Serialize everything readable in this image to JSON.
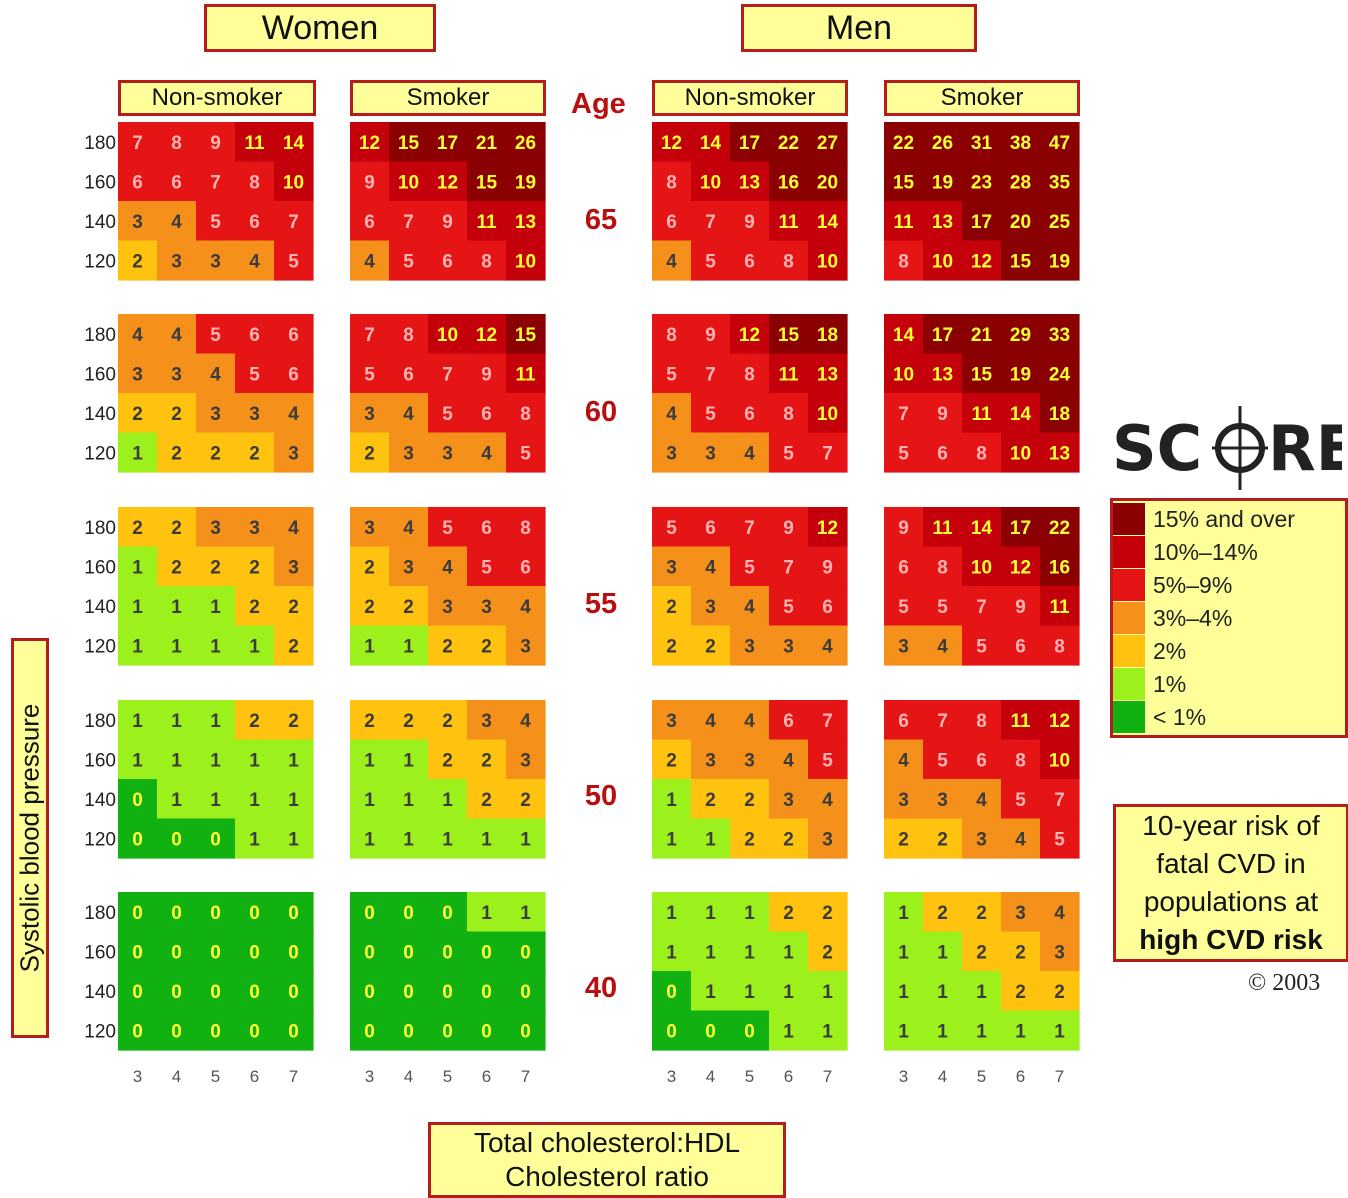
{
  "chart_data": {
    "type": "heatmap",
    "sex_headers": [
      "Women",
      "Men"
    ],
    "smoking_headers": [
      "Non-smoker",
      "Smoker"
    ],
    "age_header": "Age",
    "ages": [
      "65",
      "60",
      "55",
      "50",
      "40"
    ],
    "sbp_levels": [
      "180",
      "160",
      "140",
      "120"
    ],
    "chol_ratios": [
      "3",
      "4",
      "5",
      "6",
      "7"
    ],
    "ylabel": "Systolic blood pressure",
    "xlabel": [
      "Total cholesterol:HDL",
      "Cholesterol ratio"
    ],
    "description": [
      "10-year risk of",
      "fatal CVD in",
      "populations at",
      "high CVD risk"
    ],
    "copyright": "© 2003",
    "logo": "SCORE",
    "legend": [
      {
        "label": "15% and over",
        "color": "#8b0000"
      },
      {
        "label": "10%–14%",
        "color": "#c4000b"
      },
      {
        "label": "5%–9%",
        "color": "#e61515"
      },
      {
        "label": "3%–4%",
        "color": "#f5901a"
      },
      {
        "label": "2%",
        "color": "#ffc20e"
      },
      {
        "label": "1%",
        "color": "#9cf01c"
      },
      {
        "label": "< 1%",
        "color": "#12b112"
      }
    ],
    "panels": [
      {
        "sex": "Women",
        "smoker": "Non-smoker",
        "values": [
          [
            [
              7,
              8,
              9,
              11,
              14
            ],
            [
              6,
              6,
              7,
              8,
              10
            ],
            [
              3,
              4,
              5,
              6,
              7
            ],
            [
              2,
              3,
              3,
              4,
              5
            ]
          ],
          [
            [
              4,
              4,
              5,
              6,
              6
            ],
            [
              3,
              3,
              4,
              5,
              6
            ],
            [
              2,
              2,
              3,
              3,
              4
            ],
            [
              1,
              2,
              2,
              2,
              3
            ]
          ],
          [
            [
              2,
              2,
              3,
              3,
              4
            ],
            [
              1,
              2,
              2,
              2,
              3
            ],
            [
              1,
              1,
              1,
              2,
              2
            ],
            [
              1,
              1,
              1,
              1,
              2
            ]
          ],
          [
            [
              1,
              1,
              1,
              2,
              2
            ],
            [
              1,
              1,
              1,
              1,
              1
            ],
            [
              0,
              1,
              1,
              1,
              1
            ],
            [
              0,
              0,
              0,
              1,
              1
            ]
          ],
          [
            [
              0,
              0,
              0,
              0,
              0
            ],
            [
              0,
              0,
              0,
              0,
              0
            ],
            [
              0,
              0,
              0,
              0,
              0
            ],
            [
              0,
              0,
              0,
              0,
              0
            ]
          ]
        ]
      },
      {
        "sex": "Women",
        "smoker": "Smoker",
        "values": [
          [
            [
              12,
              15,
              17,
              21,
              26
            ],
            [
              9,
              10,
              12,
              15,
              19
            ],
            [
              6,
              7,
              9,
              11,
              13
            ],
            [
              4,
              5,
              6,
              8,
              10
            ]
          ],
          [
            [
              7,
              8,
              10,
              12,
              15
            ],
            [
              5,
              6,
              7,
              9,
              11
            ],
            [
              3,
              4,
              5,
              6,
              8
            ],
            [
              2,
              3,
              3,
              4,
              5
            ]
          ],
          [
            [
              3,
              4,
              5,
              6,
              8
            ],
            [
              2,
              3,
              4,
              5,
              6
            ],
            [
              2,
              2,
              3,
              3,
              4
            ],
            [
              1,
              1,
              2,
              2,
              3
            ]
          ],
          [
            [
              2,
              2,
              2,
              3,
              4
            ],
            [
              1,
              1,
              2,
              2,
              3
            ],
            [
              1,
              1,
              1,
              2,
              2
            ],
            [
              1,
              1,
              1,
              1,
              1
            ]
          ],
          [
            [
              0,
              0,
              0,
              1,
              1
            ],
            [
              0,
              0,
              0,
              0,
              0
            ],
            [
              0,
              0,
              0,
              0,
              0
            ],
            [
              0,
              0,
              0,
              0,
              0
            ]
          ]
        ]
      },
      {
        "sex": "Men",
        "smoker": "Non-smoker",
        "values": [
          [
            [
              12,
              14,
              17,
              22,
              27
            ],
            [
              8,
              10,
              13,
              16,
              20
            ],
            [
              6,
              7,
              9,
              11,
              14
            ],
            [
              4,
              5,
              6,
              8,
              10
            ]
          ],
          [
            [
              8,
              9,
              12,
              15,
              18
            ],
            [
              5,
              7,
              8,
              11,
              13
            ],
            [
              4,
              5,
              6,
              8,
              10
            ],
            [
              3,
              3,
              4,
              5,
              7
            ]
          ],
          [
            [
              5,
              6,
              7,
              9,
              12
            ],
            [
              3,
              4,
              5,
              7,
              9
            ],
            [
              2,
              3,
              4,
              5,
              6
            ],
            [
              2,
              2,
              3,
              3,
              4
            ]
          ],
          [
            [
              3,
              4,
              4,
              6,
              7
            ],
            [
              2,
              3,
              3,
              4,
              5
            ],
            [
              1,
              2,
              2,
              3,
              4
            ],
            [
              1,
              1,
              2,
              2,
              3
            ]
          ],
          [
            [
              1,
              1,
              1,
              2,
              2
            ],
            [
              1,
              1,
              1,
              1,
              2
            ],
            [
              0,
              1,
              1,
              1,
              1
            ],
            [
              0,
              0,
              0,
              1,
              1
            ]
          ]
        ]
      },
      {
        "sex": "Men",
        "smoker": "Smoker",
        "values": [
          [
            [
              22,
              26,
              31,
              38,
              47
            ],
            [
              15,
              19,
              23,
              28,
              35
            ],
            [
              11,
              13,
              17,
              20,
              25
            ],
            [
              8,
              10,
              12,
              15,
              19
            ]
          ],
          [
            [
              14,
              17,
              21,
              29,
              33
            ],
            [
              10,
              13,
              15,
              19,
              24
            ],
            [
              7,
              9,
              11,
              14,
              18
            ],
            [
              5,
              6,
              8,
              10,
              13
            ]
          ],
          [
            [
              9,
              11,
              14,
              17,
              22
            ],
            [
              6,
              8,
              10,
              12,
              16
            ],
            [
              5,
              5,
              7,
              9,
              11
            ],
            [
              3,
              4,
              5,
              6,
              8
            ]
          ],
          [
            [
              6,
              7,
              8,
              11,
              12
            ],
            [
              4,
              5,
              6,
              8,
              10
            ],
            [
              3,
              3,
              4,
              5,
              7
            ],
            [
              2,
              2,
              3,
              4,
              5
            ]
          ],
          [
            [
              1,
              2,
              2,
              3,
              4
            ],
            [
              1,
              1,
              2,
              2,
              3
            ],
            [
              1,
              1,
              1,
              2,
              2
            ],
            [
              1,
              1,
              1,
              1,
              1
            ]
          ]
        ]
      }
    ]
  }
}
